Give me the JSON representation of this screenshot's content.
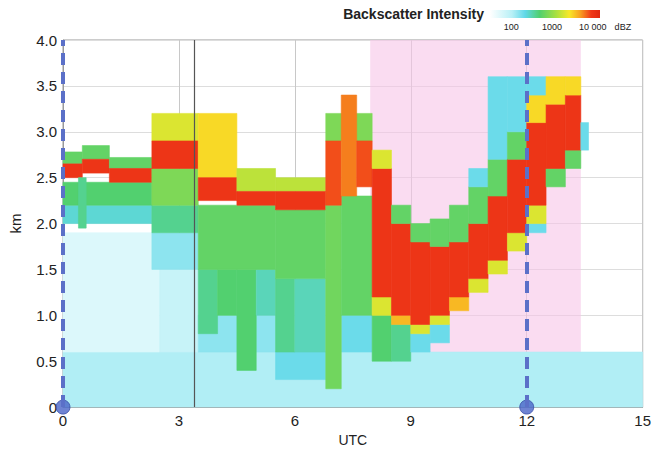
{
  "chart_data": {
    "type": "heatmap",
    "x_label": "UTC",
    "y_label": "km",
    "xlim": [
      0,
      15
    ],
    "xticks": [
      0,
      3,
      6,
      9,
      12,
      15
    ],
    "ylim": [
      0,
      4
    ],
    "yticks": [
      0,
      0.5,
      {
        "value": 1,
        "label": "1.0"
      },
      1.5,
      {
        "value": 2,
        "label": "2.0"
      },
      2.5,
      {
        "value": 3,
        "label": "3.0"
      },
      3.5,
      {
        "value": 4,
        "label": "4.0"
      }
    ],
    "grid": true,
    "colorbar": {
      "title": "Backscatter Intensity",
      "unit": "dBZ",
      "log": true,
      "range": [
        30,
        15000
      ],
      "ticks": [
        100,
        1000,
        {
          "value": 10000,
          "label": "10 000"
        }
      ]
    },
    "shaded_x_range": [
      7.95,
      13.4
    ],
    "dashed_lines_x": [
      0,
      12
    ],
    "markers": [
      [
        0,
        0
      ],
      [
        12,
        0
      ]
    ],
    "reference_line_x": 3.4,
    "cells": [
      [
        0,
        15,
        0,
        0.6,
        110
      ],
      [
        0,
        2.5,
        0.6,
        1.9,
        55
      ],
      [
        2.5,
        3.5,
        0.6,
        1.5,
        80
      ],
      [
        0,
        2.3,
        2.0,
        2.2,
        250
      ],
      [
        0,
        2.3,
        2.2,
        2.45,
        500
      ],
      [
        0,
        0.5,
        2.65,
        2.78,
        600
      ],
      [
        0,
        0.5,
        2.5,
        2.65,
        10000
      ],
      [
        0.5,
        1.2,
        2.7,
        2.85,
        600
      ],
      [
        0.5,
        1.2,
        2.55,
        2.7,
        10000
      ],
      [
        1.2,
        2.3,
        2.6,
        2.72,
        600
      ],
      [
        1.2,
        2.3,
        2.45,
        2.6,
        10000
      ],
      [
        0.4,
        0.6,
        1.95,
        2.5,
        400
      ],
      [
        2.3,
        3.5,
        1.5,
        1.9,
        150
      ],
      [
        2.3,
        3.5,
        1.9,
        2.2,
        400
      ],
      [
        2.3,
        3.5,
        2.2,
        2.6,
        800
      ],
      [
        2.3,
        3.5,
        2.9,
        3.2,
        2000
      ],
      [
        2.3,
        3.5,
        2.6,
        2.9,
        10000
      ],
      [
        3.5,
        5.5,
        0.6,
        1.0,
        150
      ],
      [
        3.5,
        4.0,
        0.8,
        1.5,
        400
      ],
      [
        4.0,
        4.5,
        1.0,
        1.5,
        500
      ],
      [
        4.5,
        5.0,
        0.4,
        1.5,
        500
      ],
      [
        5.0,
        5.5,
        1.0,
        1.5,
        300
      ],
      [
        3.5,
        5.5,
        1.5,
        2.2,
        600
      ],
      [
        3.5,
        4.5,
        2.5,
        3.2,
        3000
      ],
      [
        3.5,
        4.5,
        2.25,
        2.5,
        10000
      ],
      [
        4.5,
        5.5,
        2.35,
        2.6,
        1500
      ],
      [
        4.5,
        5.5,
        2.2,
        2.35,
        10000
      ],
      [
        5.5,
        6.8,
        0.3,
        0.6,
        200
      ],
      [
        5.5,
        6.0,
        0.6,
        1.4,
        400
      ],
      [
        6.0,
        6.8,
        0.6,
        1.4,
        300
      ],
      [
        5.5,
        6.8,
        1.4,
        2.15,
        600
      ],
      [
        5.5,
        6.8,
        2.35,
        2.5,
        1500
      ],
      [
        5.5,
        6.8,
        2.15,
        2.35,
        10000
      ],
      [
        7.2,
        8.0,
        0.6,
        1.0,
        200
      ],
      [
        6.8,
        7.2,
        0.2,
        2.2,
        700
      ],
      [
        7.2,
        8.0,
        1.0,
        2.3,
        600
      ],
      [
        6.8,
        8.0,
        2.9,
        3.2,
        800
      ],
      [
        6.8,
        7.2,
        2.2,
        2.9,
        8000
      ],
      [
        7.2,
        7.6,
        2.3,
        3.4,
        6000
      ],
      [
        7.6,
        8.0,
        2.4,
        2.9,
        8000
      ],
      [
        8.0,
        8.5,
        0.5,
        1.0,
        500
      ],
      [
        8.0,
        8.5,
        1.0,
        1.2,
        2000
      ],
      [
        8.0,
        8.5,
        1.2,
        2.6,
        10000
      ],
      [
        8.0,
        8.5,
        2.6,
        2.8,
        2000
      ],
      [
        8.5,
        9.0,
        0.5,
        0.9,
        400
      ],
      [
        8.5,
        9.0,
        0.9,
        1.0,
        4000
      ],
      [
        8.5,
        9.0,
        1.0,
        2.0,
        10000
      ],
      [
        8.5,
        9.0,
        2.0,
        2.2,
        600
      ],
      [
        9.0,
        9.5,
        0.6,
        0.8,
        200
      ],
      [
        9.0,
        9.5,
        0.8,
        0.9,
        2000
      ],
      [
        9.0,
        9.5,
        0.9,
        1.8,
        10000
      ],
      [
        9.0,
        9.5,
        1.8,
        2.0,
        600
      ],
      [
        9.5,
        10.0,
        0.7,
        0.9,
        200
      ],
      [
        9.5,
        10.0,
        0.9,
        1.0,
        2000
      ],
      [
        9.5,
        10.0,
        1.0,
        1.75,
        10000
      ],
      [
        9.5,
        10.0,
        1.75,
        2.05,
        600
      ],
      [
        10.0,
        10.5,
        1.05,
        1.2,
        4000
      ],
      [
        10.0,
        10.5,
        1.2,
        1.8,
        10000
      ],
      [
        10.0,
        10.5,
        1.8,
        2.2,
        600
      ],
      [
        10.5,
        11.0,
        1.25,
        1.4,
        2000
      ],
      [
        10.5,
        11.0,
        1.4,
        2.0,
        10000
      ],
      [
        10.5,
        11.0,
        2.0,
        2.4,
        600
      ],
      [
        10.5,
        11.0,
        2.4,
        2.6,
        200
      ],
      [
        11.0,
        11.5,
        1.45,
        1.6,
        2000
      ],
      [
        11.0,
        11.5,
        1.6,
        2.3,
        10000
      ],
      [
        11.0,
        11.5,
        2.3,
        2.7,
        600
      ],
      [
        11.0,
        11.5,
        2.7,
        3.6,
        200
      ],
      [
        11.5,
        12.0,
        1.7,
        1.9,
        2000
      ],
      [
        11.5,
        12.0,
        1.9,
        2.7,
        10000
      ],
      [
        11.5,
        12.0,
        2.7,
        3.0,
        600
      ],
      [
        11.5,
        12.0,
        3.0,
        3.6,
        200
      ],
      [
        12.0,
        12.5,
        1.9,
        2.0,
        200
      ],
      [
        12.0,
        12.5,
        2.0,
        2.2,
        2000
      ],
      [
        12.0,
        12.5,
        2.2,
        3.1,
        10000
      ],
      [
        12.0,
        12.5,
        3.1,
        3.4,
        3000
      ],
      [
        12.0,
        12.5,
        3.4,
        3.6,
        200
      ],
      [
        12.5,
        13.0,
        2.4,
        2.6,
        600
      ],
      [
        12.5,
        13.0,
        2.6,
        3.3,
        10000
      ],
      [
        12.5,
        13.0,
        3.3,
        3.6,
        3000
      ],
      [
        13.0,
        13.4,
        2.6,
        2.8,
        600
      ],
      [
        13.0,
        13.4,
        2.8,
        3.4,
        10000
      ],
      [
        13.0,
        13.4,
        3.4,
        3.6,
        3000
      ],
      [
        13.4,
        13.6,
        2.8,
        3.1,
        200
      ]
    ]
  }
}
